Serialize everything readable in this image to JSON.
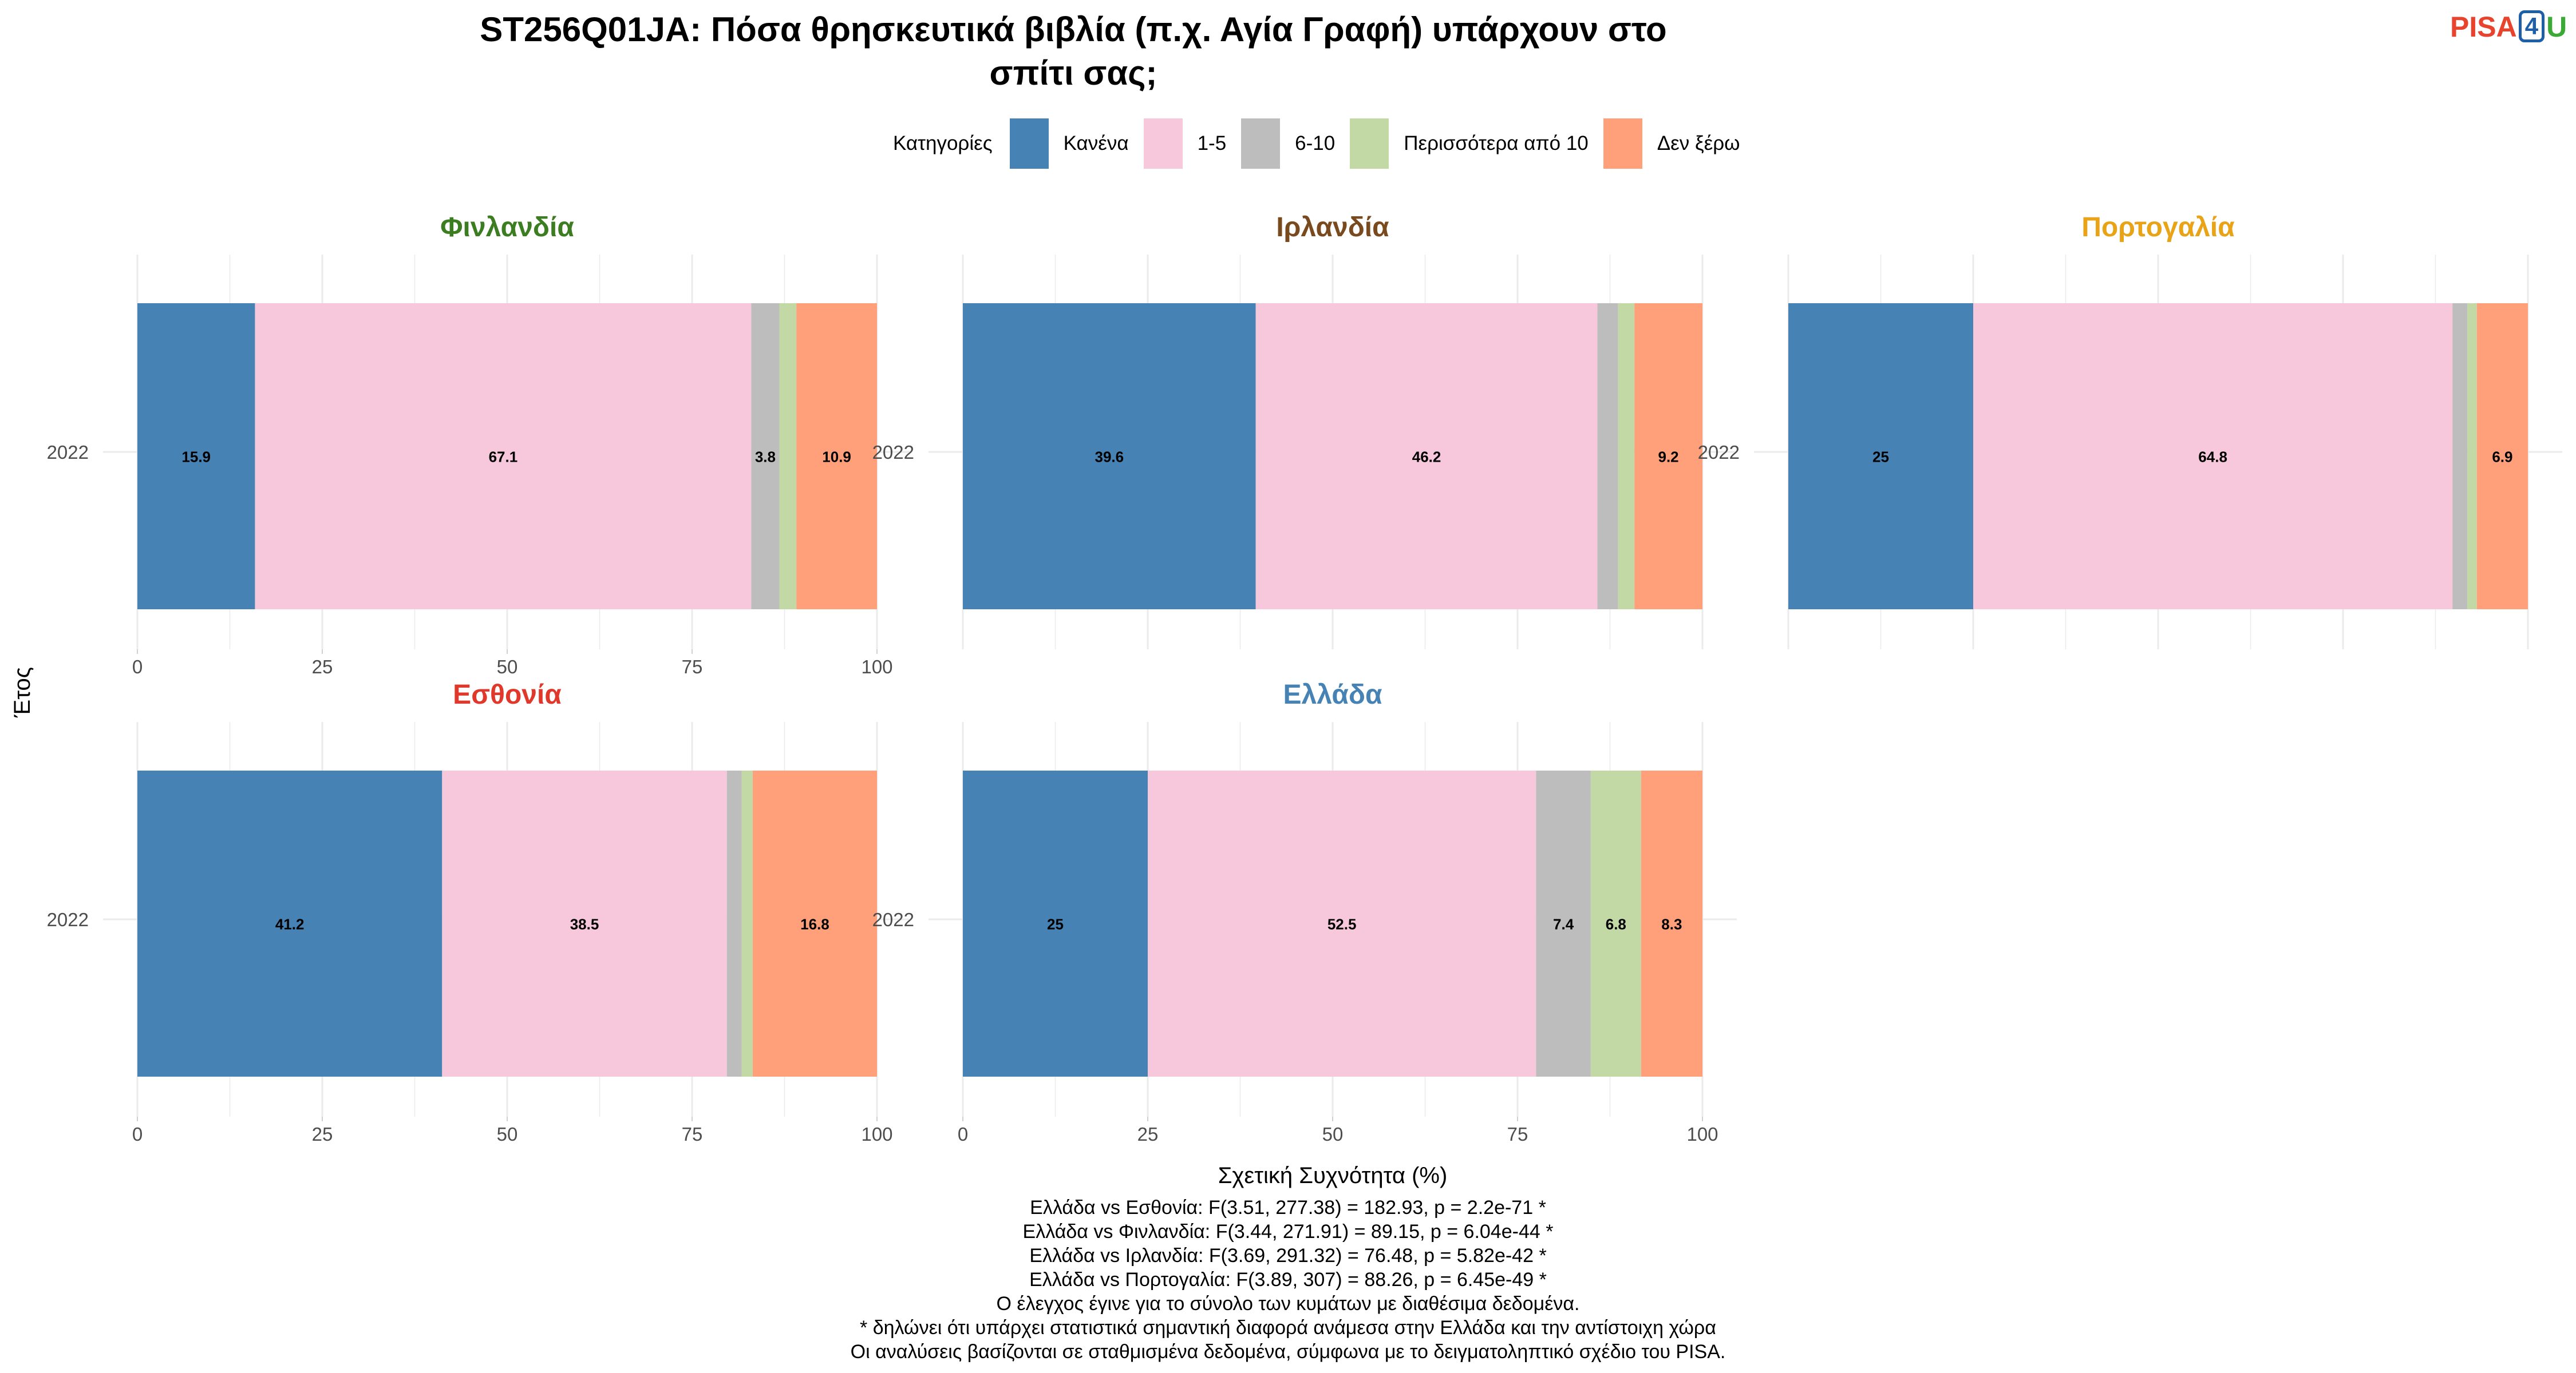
{
  "title_lines": [
    "ST256Q01JA: Πόσα θρησκευτικά βιβλία (π.χ. Αγία Γραφή) υπάρχουν στο",
    "σπίτι σας;"
  ],
  "logo": {
    "part1": "PISA",
    "part2": "4",
    "part3": "U"
  },
  "legend": {
    "title": "Κατηγορίες",
    "items": [
      {
        "label": "Κανένα",
        "color": "#4682b4"
      },
      {
        "label": "1-5",
        "color": "#f7c8dc"
      },
      {
        "label": "6-10",
        "color": "#bdbdbd"
      },
      {
        "label": "Περισσότερα από 10",
        "color": "#c2d9a6"
      },
      {
        "label": "Δεν ξέρω",
        "color": "#ffa07a"
      }
    ]
  },
  "chart_data": {
    "type": "bar",
    "orientation": "horizontal",
    "stacked": true,
    "xlabel": "Σχετική Συχνότητα (%)",
    "ylabel": "Έτος",
    "xlim": [
      0,
      100
    ],
    "xticks": [
      0,
      25,
      50,
      75,
      100
    ],
    "categories": [
      "Κανένα",
      "1-5",
      "6-10",
      "Περισσότερα από 10",
      "Δεν ξέρω"
    ],
    "panels": [
      {
        "country": "Φινλανδία",
        "color": "#3c7d22",
        "year": "2022",
        "values": [
          15.9,
          67.1,
          3.8,
          2.3,
          10.9
        ],
        "labels": [
          "15.9",
          "67.1",
          "3.8",
          "",
          "10.9"
        ]
      },
      {
        "country": "Ιρλανδία",
        "color": "#7a4a1f",
        "year": "2022",
        "values": [
          39.6,
          46.2,
          2.8,
          2.2,
          9.2
        ],
        "labels": [
          "39.6",
          "46.2",
          "",
          "",
          "9.2"
        ]
      },
      {
        "country": "Πορτογαλία",
        "color": "#e8a317",
        "year": "2022",
        "values": [
          25,
          64.8,
          2.0,
          1.3,
          6.9
        ],
        "labels": [
          "25",
          "64.8",
          "",
          "",
          "6.9"
        ]
      },
      {
        "country": "Εσθονία",
        "color": "#e0392b",
        "year": "2022",
        "values": [
          41.2,
          38.5,
          2.0,
          1.5,
          16.8
        ],
        "labels": [
          "41.2",
          "38.5",
          "",
          "",
          "16.8"
        ]
      },
      {
        "country": "Ελλάδα",
        "color": "#4682b4",
        "year": "2022",
        "values": [
          25,
          52.5,
          7.4,
          6.8,
          8.3
        ],
        "labels": [
          "25",
          "52.5",
          "7.4",
          "6.8",
          "8.3"
        ]
      }
    ]
  },
  "notes": [
    "Ελλάδα vs Εσθονία: F(3.51, 277.38) = 182.93, p = 2.2e-71 *",
    "Ελλάδα vs Φινλανδία: F(3.44, 271.91) = 89.15, p = 6.04e-44 *",
    "Ελλάδα vs Ιρλανδία: F(3.69, 291.32) = 76.48, p = 5.82e-42 *",
    "Ελλάδα vs Πορτογαλία: F(3.89, 307) = 88.26, p = 6.45e-49 *",
    "Ο έλεγχος έγινε για το σύνολο των κυμάτων με διαθέσιμα δεδομένα.",
    "* δηλώνει ότι υπάρχει στατιστικά σημαντική διαφορά ανάμεσα στην Ελλάδα και την αντίστοιχη χώρα",
    "Οι αναλύσεις βασίζονται σε σταθμισμένα δεδομένα, σύμφωνα με το δειγματοληπτικό σχέδιο του PISA."
  ]
}
